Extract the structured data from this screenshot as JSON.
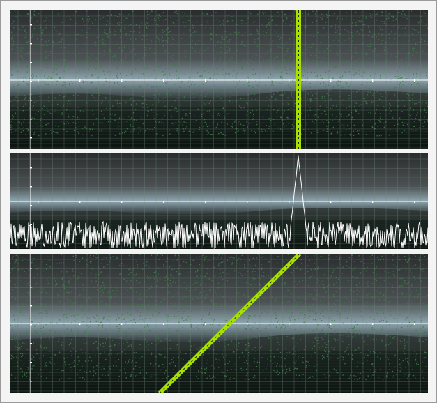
{
  "colors": {
    "frame_background": "#f4f4f4",
    "frame_border": "#9a9a9a",
    "sky": "#3a3c3e",
    "cloud_light": "#8fa6b0",
    "sea": "#0c1410",
    "noise_green": "#3f7a4a",
    "grid": "#6f8a7a",
    "marker_line": "#ffffff",
    "signal_line": "#a8e000",
    "signal_trace": "#ffffff"
  },
  "panels": {
    "top": {
      "role": "waterfall-spectrogram",
      "signal": "vertical-line"
    },
    "middle": {
      "role": "spectrum-trace",
      "signal": "single-peak-over-noise"
    },
    "bottom": {
      "role": "waterfall-spectrogram",
      "signal": "diagonal-sweep"
    }
  }
}
